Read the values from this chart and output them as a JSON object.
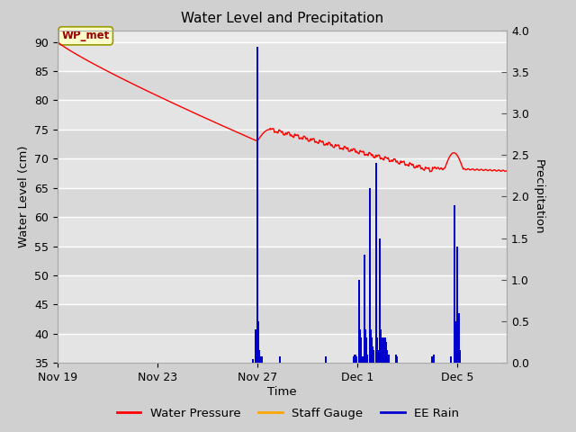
{
  "title": "Water Level and Precipitation",
  "xlabel": "Time",
  "ylabel_left": "Water Level (cm)",
  "ylabel_right": "Precipitation",
  "annotation_text": "WP_met",
  "ylim_left": [
    35,
    92
  ],
  "ylim_right": [
    0,
    4.0
  ],
  "yticks_left": [
    35,
    40,
    45,
    50,
    55,
    60,
    65,
    70,
    75,
    80,
    85,
    90
  ],
  "yticks_right": [
    0.0,
    0.5,
    1.0,
    1.5,
    2.0,
    2.5,
    3.0,
    3.5,
    4.0
  ],
  "xtick_labels": [
    "Nov 19",
    "Nov 23",
    "Nov 27",
    "Dec 1",
    "Dec 5"
  ],
  "xtick_positions": [
    0,
    96,
    192,
    288,
    384
  ],
  "xlim": [
    0,
    432
  ],
  "fig_bg_color": "#d0d0d0",
  "plot_bg_color": "#ebebeb",
  "grid_color": "#ffffff",
  "water_pressure_color": "#ff0000",
  "staff_gauge_color": "#ffa500",
  "ee_rain_color": "#0000cd",
  "legend_items": [
    "Water Pressure",
    "Staff Gauge",
    "EE Rain"
  ],
  "legend_colors": [
    "#ff0000",
    "#ffa500",
    "#0000cd"
  ],
  "band_colors": [
    "#e8e8e8",
    "#d8d8d8"
  ],
  "right_tick_color": "#555555"
}
